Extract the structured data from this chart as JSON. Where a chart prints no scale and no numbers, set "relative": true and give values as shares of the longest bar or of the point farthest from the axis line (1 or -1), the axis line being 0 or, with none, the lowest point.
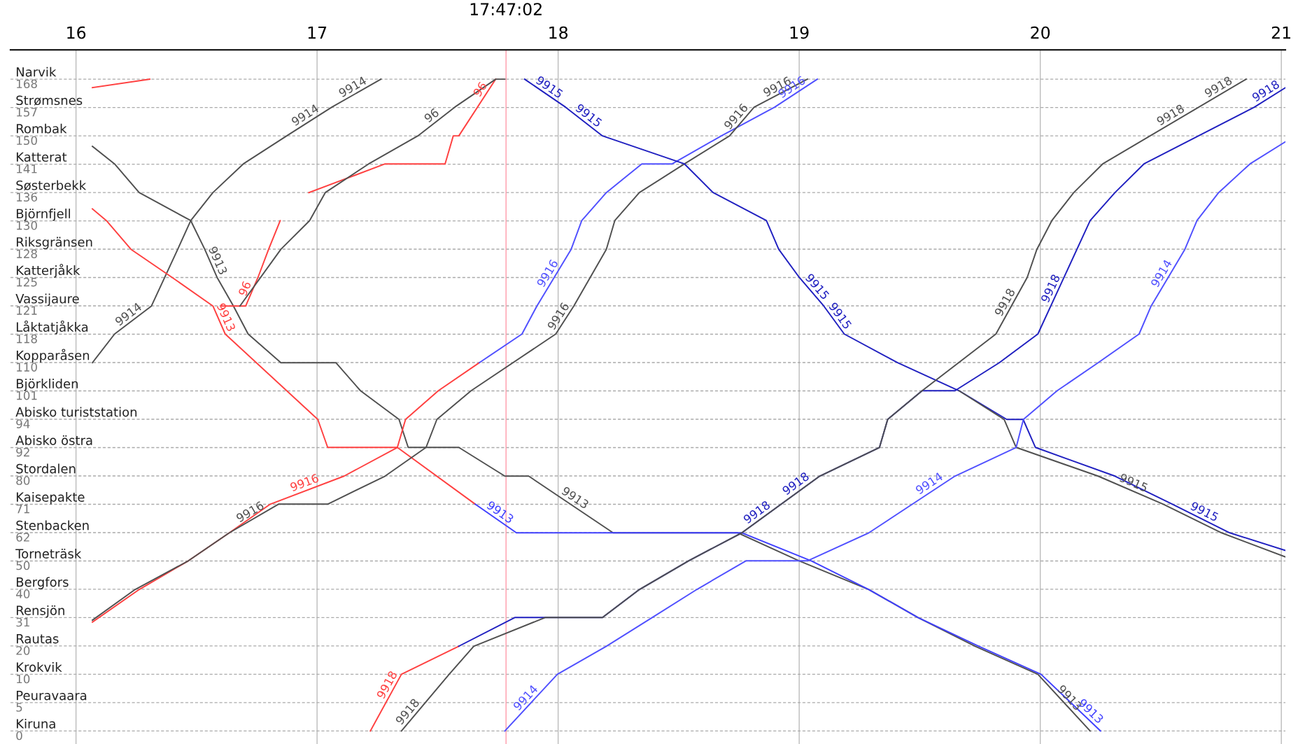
{
  "chart_data": {
    "type": "line",
    "relative": true,
    "xlim": [
      15.728,
      21.017
    ],
    "xticks": [
      16,
      17,
      18,
      19,
      20,
      21
    ],
    "y_categories": [
      "Narvik\n168",
      "Strømsnes\n157",
      "Rombak\n150",
      "Katterat\n141",
      "Søsterbekk\n136",
      "Björnfjell\n130",
      "Riksgränsen\n128",
      "Katterjåkk\n125",
      "Vassijaure\n121",
      "Låktatjåkka\n118",
      "Kopparåsen\n110",
      "Björkliden\n101",
      "Abisko turiststation\n94",
      "Abisko östra\n92",
      "Stordalen\n80",
      "Kaisepakte\n71",
      "Stenbacken\n62",
      "Torneträsk\n50",
      "Bergfors\n40",
      "Rensjön\n31",
      "Rautas\n20",
      "Krokvik\n10",
      "Peuravaara\n5",
      "Kiruna\n0"
    ],
    "grid": true,
    "legend": false,
    "marker": "none",
    "line_style": "solid",
    "ref_lines": [
      {
        "axis": "x",
        "value": 17.7839,
        "color": "#ff9aaa"
      }
    ],
    "series": [
      {
        "color": "#505050",
        "x": [
          16.068,
          16.16,
          16.313,
          16.422,
          16.476,
          16.568,
          16.694,
          16.874,
          17.061,
          17.265
        ],
        "values": [
          0.565,
          0.609,
          0.652,
          0.739,
          0.783,
          0.826,
          0.87,
          0.913,
          0.957,
          1
        ]
      },
      {
        "color": "#505050",
        "x": [
          16.068,
          16.16,
          16.262,
          16.476,
          16.534,
          16.585,
          16.653,
          16.714,
          16.85,
          17.078,
          17.18,
          17.34,
          17.378,
          17.588,
          17.779,
          17.878,
          18.228,
          18.745,
          19.0,
          19.289,
          19.493,
          19.73,
          19.99,
          20.207
        ],
        "values": [
          0.897,
          0.87,
          0.826,
          0.783,
          0.739,
          0.696,
          0.652,
          0.609,
          0.565,
          0.565,
          0.522,
          0.478,
          0.435,
          0.435,
          0.391,
          0.391,
          0.304,
          0.304,
          0.261,
          0.217,
          0.174,
          0.13,
          0.087,
          0
        ]
      },
      {
        "color": "#ff4040",
        "x": [
          16.068,
          16.126,
          16.228,
          16.398,
          16.568,
          16.619,
          17.003,
          17.044,
          17.333,
          17.656
        ],
        "values": [
          0.801,
          0.783,
          0.739,
          0.696,
          0.652,
          0.609,
          0.478,
          0.435,
          0.435,
          0.348
        ]
      },
      {
        "color": "#4040ff",
        "x": [
          17.656,
          17.827,
          18.762,
          19.05,
          19.289,
          19.493,
          19.745,
          20.003,
          20.25
        ],
        "values": [
          0.348,
          0.304,
          0.304,
          0.261,
          0.217,
          0.174,
          0.13,
          0.087,
          0
        ]
      },
      {
        "color": "#ff4040",
        "x": [
          16.068,
          16.262,
          16.466,
          16.636,
          16.806,
          17.112,
          17.333,
          17.367,
          17.503,
          17.673
        ],
        "values": [
          0.167,
          0.217,
          0.261,
          0.304,
          0.348,
          0.391,
          0.435,
          0.478,
          0.522,
          0.565
        ]
      },
      {
        "color": "#5050ff",
        "x": [
          17.673,
          17.85,
          17.912,
          18.054,
          18.098,
          18.2,
          18.347,
          18.473,
          18.677,
          18.898,
          19.075
        ],
        "values": [
          0.565,
          0.609,
          0.652,
          0.739,
          0.783,
          0.826,
          0.87,
          0.87,
          0.913,
          0.957,
          1
        ]
      },
      {
        "color": "#505050",
        "x": [
          16.068,
          16.245,
          16.466,
          16.636,
          16.84,
          17.044,
          17.282,
          17.452,
          17.497,
          17.639,
          17.99,
          18.065,
          18.2,
          18.235,
          18.337,
          18.524,
          18.711,
          18.813,
          19.034
        ],
        "values": [
          0.17,
          0.217,
          0.261,
          0.304,
          0.348,
          0.348,
          0.391,
          0.435,
          0.478,
          0.522,
          0.609,
          0.652,
          0.739,
          0.783,
          0.826,
          0.87,
          0.913,
          0.957,
          1
        ]
      },
      {
        "color": "#ff4040",
        "x": [
          16.602,
          16.704,
          16.755,
          16.799,
          16.847
        ],
        "values": [
          0.652,
          0.652,
          0.696,
          0.739,
          0.783
        ]
      },
      {
        "color": "#ff4040",
        "x": [
          16.966,
          17.282,
          17.531,
          17.565,
          17.588,
          17.741
        ],
        "values": [
          0.826,
          0.87,
          0.87,
          0.913,
          0.913,
          1
        ]
      },
      {
        "color": "#505050",
        "x": [
          16.68,
          16.85,
          16.969,
          17.034,
          17.214,
          17.418,
          17.571,
          17.741,
          17.779
        ],
        "values": [
          0.652,
          0.739,
          0.783,
          0.826,
          0.87,
          0.913,
          0.957,
          1,
          1
        ]
      },
      {
        "color": "#ff4040",
        "x": [
          16.068,
          16.306
        ],
        "values": [
          0.987,
          1
        ]
      },
      {
        "color": "#2020c0",
        "x": [
          17.861,
          18.031,
          18.184,
          18.524,
          18.643,
          18.864,
          18.915,
          19.0,
          19.102,
          19.187,
          19.408,
          19.663,
          19.861,
          19.929,
          19.98,
          20.31,
          20.548,
          20.786,
          21.017
        ],
        "values": [
          1,
          0.957,
          0.913,
          0.87,
          0.826,
          0.783,
          0.739,
          0.696,
          0.652,
          0.609,
          0.565,
          0.522,
          0.478,
          0.478,
          0.435,
          0.391,
          0.348,
          0.304,
          0.277
        ]
      },
      {
        "color": "#505050",
        "x": [
          19.663,
          19.85,
          19.9,
          20.24,
          20.51,
          20.752,
          21.017
        ],
        "values": [
          0.522,
          0.478,
          0.435,
          0.391,
          0.348,
          0.304,
          0.267
        ]
      },
      {
        "color": "#ff4040",
        "x": [
          17.221,
          17.35,
          17.588
        ],
        "values": [
          0,
          0.087,
          0.13
        ]
      },
      {
        "color": "#2020c0",
        "x": [
          17.588,
          17.82,
          18.184,
          18.337,
          18.541,
          18.762,
          19.085,
          19.333,
          19.367,
          19.51,
          19.646,
          19.83,
          19.99,
          20.207,
          20.31,
          20.43,
          20.888,
          21.017
        ],
        "values": [
          0.13,
          0.174,
          0.174,
          0.217,
          0.261,
          0.304,
          0.391,
          0.435,
          0.478,
          0.522,
          0.522,
          0.565,
          0.609,
          0.783,
          0.826,
          0.87,
          0.957,
          0.987
        ]
      },
      {
        "color": "#505050",
        "x": [
          17.35,
          17.548,
          17.65,
          17.946,
          18.184,
          18.337,
          18.541,
          18.762,
          19.085,
          19.333,
          19.367,
          19.51,
          19.816,
          19.946,
          19.986,
          20.048,
          20.139,
          20.259,
          20.854
        ],
        "values": [
          0,
          0.087,
          0.13,
          0.174,
          0.174,
          0.217,
          0.261,
          0.304,
          0.391,
          0.435,
          0.478,
          0.522,
          0.609,
          0.696,
          0.739,
          0.783,
          0.826,
          0.87,
          1
        ]
      },
      {
        "color": "#5050ff",
        "x": [
          17.779,
          17.997,
          18.2,
          18.39,
          18.575,
          18.779,
          19.034,
          19.289,
          19.646,
          19.9,
          19.93,
          20.07,
          20.24,
          20.41,
          20.46,
          20.6,
          20.65,
          20.74,
          20.87,
          21.017
        ],
        "values": [
          0,
          0.087,
          0.13,
          0.174,
          0.217,
          0.261,
          0.261,
          0.304,
          0.391,
          0.435,
          0.478,
          0.522,
          0.565,
          0.609,
          0.652,
          0.739,
          0.783,
          0.826,
          0.87,
          0.904
        ]
      }
    ],
    "annotations": [
      "17:47:02",
      {
        "text": "9914",
        "x": 16.2365,
        "y": 0.63
      },
      {
        "text": "9914",
        "x": 16.9675,
        "y": 0.935
      },
      {
        "text": "9914",
        "x": 17.163,
        "y": 0.978
      },
      {
        "text": "9913",
        "x": 16.5595,
        "y": 0.717
      },
      {
        "text": "9913",
        "x": 18.053,
        "y": 0.348
      },
      {
        "text": "9913",
        "x": 20.0985,
        "y": 0.043
      },
      {
        "text": "9913",
        "x": 20.188,
        "y": 0.022
      },
      {
        "text": "9913",
        "x": 16.5935,
        "y": 0.63
      },
      {
        "text": "9913",
        "x": 17.7415,
        "y": 0.326
      },
      {
        "text": "96",
        "x": 16.7295,
        "y": 0.674
      },
      {
        "text": "96",
        "x": 17.7028,
        "y": 0.978
      },
      {
        "text": "96",
        "x": 17.4945,
        "y": 0.935
      },
      {
        "text": "9916",
        "x": 16.959,
        "y": 0.37
      },
      {
        "text": "9916",
        "x": 16.738,
        "y": 0.326
      },
      {
        "text": "9916",
        "x": 18.0275,
        "y": 0.63
      },
      {
        "text": "9916",
        "x": 18.762,
        "y": 0.935
      },
      {
        "text": "9916",
        "x": 18.9235,
        "y": 0.978
      },
      {
        "text": "9916",
        "x": 17.983,
        "y": 0.696
      },
      {
        "text": "9916",
        "x": 18.9865,
        "y": 0.978
      },
      {
        "text": "9915",
        "x": 17.946,
        "y": 0.978
      },
      {
        "text": "9915",
        "x": 19.051,
        "y": 0.674
      },
      {
        "text": "9915",
        "x": 20.375,
        "y": 0.37
      },
      {
        "text": "9915",
        "x": 18.1075,
        "y": 0.935
      },
      {
        "text": "9915",
        "x": 19.1445,
        "y": 0.63
      },
      {
        "text": "9915",
        "x": 20.667,
        "y": 0.326
      },
      {
        "text": "9918",
        "x": 17.3178,
        "y": 0.065
      },
      {
        "text": "9918",
        "x": 17.3995,
        "y": 0.022
      },
      {
        "text": "9918",
        "x": 18.84275,
        "y": 0.326
      },
      {
        "text": "9918",
        "x": 19.881,
        "y": 0.652
      },
      {
        "text": "9918",
        "x": 20.5565,
        "y": 0.935
      },
      {
        "text": "9918",
        "x": 20.7548,
        "y": 0.978
      },
      {
        "text": "9918",
        "x": 19.00425,
        "y": 0.37
      },
      {
        "text": "9918",
        "x": 20.0714,
        "y": 0.674
      },
      {
        "text": "9918",
        "x": 20.9525,
        "y": 0.972
      },
      {
        "text": "9914",
        "x": 17.888,
        "y": 0.043
      },
      {
        "text": "9914",
        "x": 19.5568,
        "y": 0.37
      },
      {
        "text": "9914",
        "x": 20.53,
        "y": 0.696
      }
    ]
  }
}
